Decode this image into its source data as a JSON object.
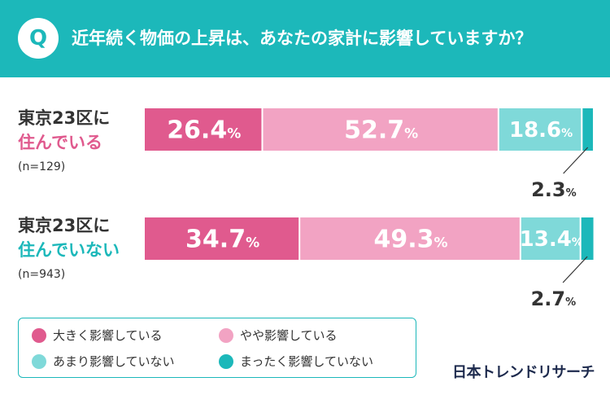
{
  "header": {
    "badge": "Q",
    "question": "近年続く物価の上昇は、あなたの家計に影響していますか？"
  },
  "groups": [
    {
      "line1": "東京23区に",
      "line2": "住んでいる",
      "n": "(n=129)"
    },
    {
      "line1": "東京23区に",
      "line2": "住んでいない",
      "n": "(n=943)"
    }
  ],
  "chart_data": {
    "type": "bar",
    "orientation": "horizontal",
    "stacked": true,
    "percent_scale": true,
    "categories": [
      "東京23区に住んでいる (n=129)",
      "東京23区に住んでいない (n=943)"
    ],
    "series": [
      {
        "name": "大きく影響している",
        "values": [
          26.4,
          34.7
        ],
        "color": "#e05a8e"
      },
      {
        "name": "やや影響している",
        "values": [
          52.7,
          49.3
        ],
        "color": "#f2a3c3"
      },
      {
        "name": "あまり影響していない",
        "values": [
          18.6,
          13.4
        ],
        "color": "#7fd9d9"
      },
      {
        "name": "まったく影響していない",
        "values": [
          2.3,
          2.7
        ],
        "color": "#1cb8ba"
      }
    ],
    "unit": "%",
    "legend_position": "bottom-left"
  },
  "legend": [
    {
      "label": "大きく影響している",
      "color": "#e05a8e"
    },
    {
      "label": "やや影響している",
      "color": "#f2a3c3"
    },
    {
      "label": "あまり影響していない",
      "color": "#7fd9d9"
    },
    {
      "label": "まったく影響していない",
      "color": "#1cb8ba"
    }
  ],
  "brand": "日本トレンドリサーチ"
}
